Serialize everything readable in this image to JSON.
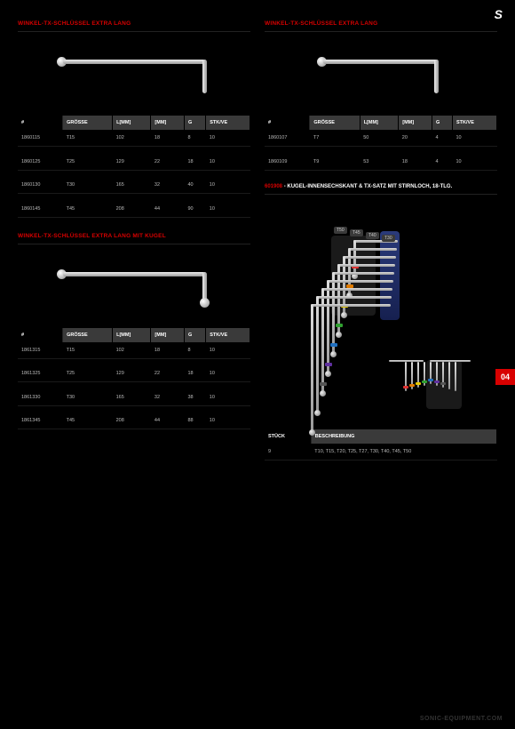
{
  "brand_glyph": "S",
  "page_tab": "04",
  "footer": "SONIC-EQUIPMENT.COM",
  "left": {
    "section1": {
      "title": "WINKEL-TX-SCHLÜSSEL EXTRA LANG",
      "columns": [
        "#",
        "GRÖSSE",
        "L[MM]",
        "[MM]",
        "G",
        "STK/VE"
      ],
      "rows": [
        [
          "1860115",
          "T15",
          "102",
          "18",
          "8",
          "10"
        ],
        [
          "1860125",
          "T25",
          "129",
          "22",
          "18",
          "10"
        ],
        [
          "1860130",
          "T30",
          "165",
          "32",
          "40",
          "10"
        ],
        [
          "1860145",
          "T45",
          "208",
          "44",
          "90",
          "10"
        ]
      ]
    },
    "section2": {
      "title": "WINKEL-TX-SCHLÜSSEL EXTRA LANG MIT KUGEL",
      "columns": [
        "#",
        "GRÖSSE",
        "L[MM]",
        "[MM]",
        "G",
        "STK/VE"
      ],
      "rows": [
        [
          "1861315",
          "T15",
          "102",
          "18",
          "8",
          "10"
        ],
        [
          "1861325",
          "T25",
          "129",
          "22",
          "18",
          "10"
        ],
        [
          "1861330",
          "T30",
          "165",
          "32",
          "38",
          "10"
        ],
        [
          "1861345",
          "T45",
          "208",
          "44",
          "88",
          "10"
        ]
      ]
    }
  },
  "right": {
    "section1": {
      "title": "WINKEL-TX-SCHLÜSSEL EXTRA LANG",
      "columns": [
        "#",
        "GRÖSSE",
        "L[MM]",
        "[MM]",
        "G",
        "STK/VE"
      ],
      "rows": [
        [
          "1860107",
          "T7",
          "50",
          "20",
          "4",
          "10"
        ],
        [
          "1860109",
          "T9",
          "53",
          "18",
          "4",
          "10"
        ]
      ]
    },
    "set": {
      "article": "601908",
      "desc": "- KUGEL-INNENSECHSKANT & TX-SATZ MIT STIRNLOCH, 18-TLG.",
      "size_labels": [
        "T50",
        "T45",
        "T40",
        "T30"
      ],
      "band_colors": [
        "#e03030",
        "#e07b00",
        "#e6c800",
        "#30a030",
        "#2070c0",
        "#6030a0",
        "#555555"
      ],
      "table_cols": [
        "STÜCK",
        "BESCHREIBUNG"
      ],
      "table_row": [
        "9",
        "T10, T15, T20, T25, T27, T30, T40, T45, T50"
      ]
    }
  }
}
